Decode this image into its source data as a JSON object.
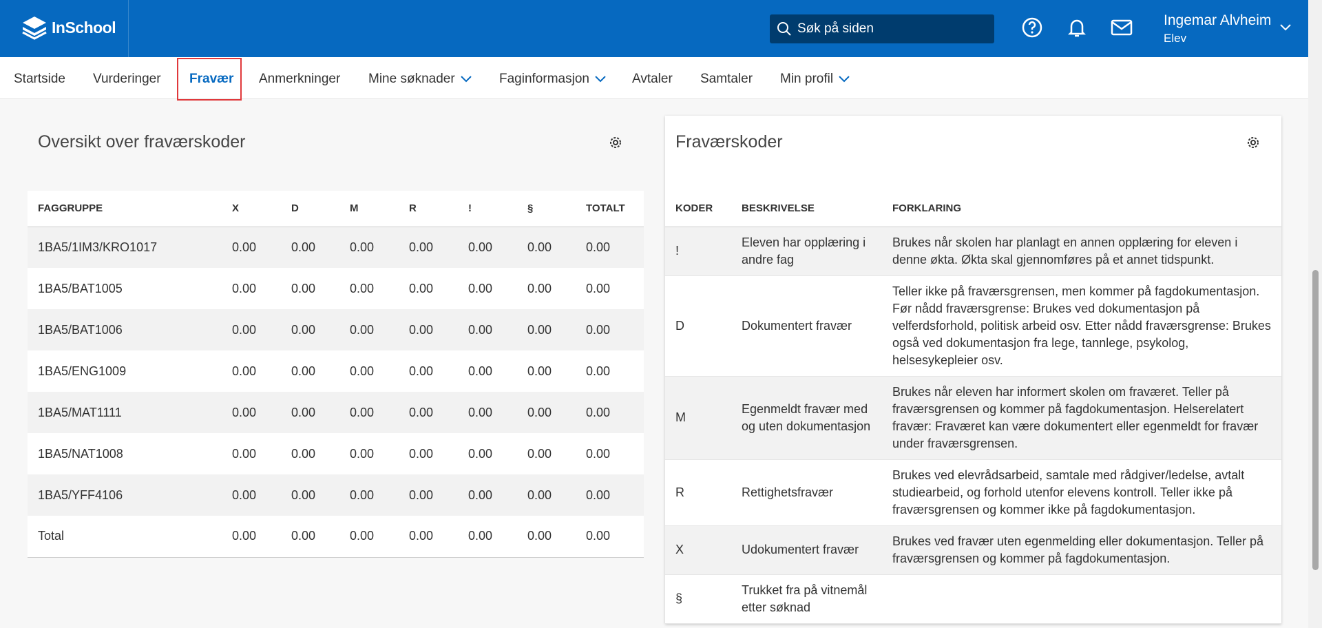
{
  "header": {
    "logo": "InSchool",
    "search_placeholder": "Søk på siden",
    "user_name": "Ingemar Alvheim",
    "user_role": "Elev"
  },
  "nav": [
    "Startside",
    "Vurderinger",
    "Fravær",
    "Anmerkninger",
    "Mine søknader",
    "Faginformasjon",
    "Avtaler",
    "Samtaler",
    "Min profil"
  ],
  "overview": {
    "title": "Oversikt over fraværskoder",
    "table": {
      "columns": [
        "FAGGRUPPE",
        "X",
        "D",
        "M",
        "R",
        "!",
        "§",
        "TOTALT"
      ],
      "rows": [
        [
          "1BA5/1IM3/KRO1017",
          "0.00",
          "0.00",
          "0.00",
          "0.00",
          "0.00",
          "0.00",
          "0.00"
        ],
        [
          "1BA5/BAT1005",
          "0.00",
          "0.00",
          "0.00",
          "0.00",
          "0.00",
          "0.00",
          "0.00"
        ],
        [
          "1BA5/BAT1006",
          "0.00",
          "0.00",
          "0.00",
          "0.00",
          "0.00",
          "0.00",
          "0.00"
        ],
        [
          "1BA5/ENG1009",
          "0.00",
          "0.00",
          "0.00",
          "0.00",
          "0.00",
          "0.00",
          "0.00"
        ],
        [
          "1BA5/MAT1111",
          "0.00",
          "0.00",
          "0.00",
          "0.00",
          "0.00",
          "0.00",
          "0.00"
        ],
        [
          "1BA5/NAT1008",
          "0.00",
          "0.00",
          "0.00",
          "0.00",
          "0.00",
          "0.00",
          "0.00"
        ],
        [
          "1BA5/YFF4106",
          "0.00",
          "0.00",
          "0.00",
          "0.00",
          "0.00",
          "0.00",
          "0.00"
        ],
        [
          "Total",
          "0.00",
          "0.00",
          "0.00",
          "0.00",
          "0.00",
          "0.00",
          "0.00"
        ]
      ]
    }
  },
  "codes": {
    "title": "Fraværskoder",
    "table": {
      "columns": [
        "KODER",
        "BESKRIVELSE",
        "FORKLARING"
      ],
      "rows": [
        [
          "!",
          "Eleven har opplæring i andre fag",
          "Brukes når skolen har planlagt en annen opplæring for eleven i denne økta. Økta skal gjennomføres på et annet tidspunkt."
        ],
        [
          "D",
          "Dokumentert fravær",
          "Teller ikke på fraværsgrensen, men kommer på fagdokumentasjon. Før nådd fraværsgrense: Brukes ved dokumentasjon på velferdsforhold, politisk arbeid osv. Etter nådd fraværsgrense: Brukes også ved dokumentasjon fra lege, tannlege, psykolog, helsesykepleier osv."
        ],
        [
          "M",
          "Egenmeldt fravær med og uten dokumentasjon",
          "Brukes når eleven har informert skolen om fraværet. Teller på fraværsgrensen og kommer på fagdokumentasjon. Helserelatert fravær: Fraværet kan være dokumentert eller egenmeldt for fravær under fraværsgrensen."
        ],
        [
          "R",
          "Rettighetsfravær",
          "Brukes ved elevrådsarbeid, samtale med rådgiver/ledelse, avtalt studiearbeid, og forhold utenfor elevens kontroll. Teller ikke på fraværsgrensen og kommer ikke på fagdokumentasjon."
        ],
        [
          "X",
          "Udokumentert fravær",
          "Brukes ved fravær uten egenmelding eller dokumentasjon. Teller på fraværsgrensen og kommer på fagdokumentasjon."
        ],
        [
          "§",
          "Trukket fra på vitnemål etter søknad",
          ""
        ]
      ]
    }
  }
}
